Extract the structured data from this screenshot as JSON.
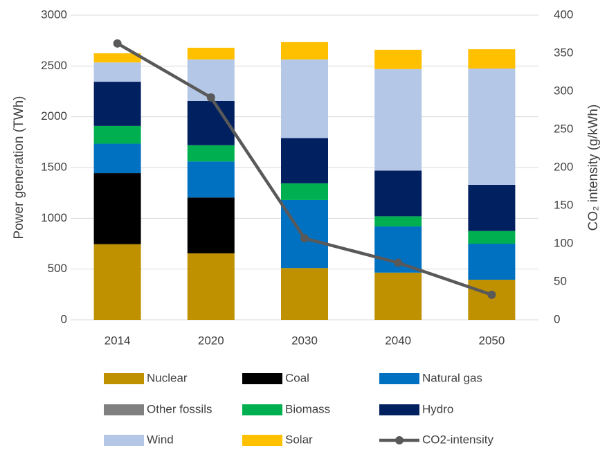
{
  "chart_data": {
    "type": "bar",
    "stacked": true,
    "y_label": "Power generation (TWh)",
    "y2_label": "CO₂ intensity (g/kWh)",
    "categories": [
      "2014",
      "2020",
      "2030",
      "2040",
      "2050"
    ],
    "ylim": [
      0,
      3000
    ],
    "yticks": [
      0,
      500,
      1000,
      1500,
      2000,
      2500,
      3000
    ],
    "y2lim": [
      0,
      400
    ],
    "y2ticks": [
      0,
      50,
      100,
      150,
      200,
      250,
      300,
      350,
      400
    ],
    "grid": true,
    "legend": "bottom",
    "series": [
      {
        "name": "Nuclear",
        "color": "#bf9000",
        "values": [
          745,
          655,
          510,
          465,
          395
        ]
      },
      {
        "name": "Coal",
        "color": "#000000",
        "values": [
          700,
          550,
          0,
          0,
          0
        ]
      },
      {
        "name": "Natural gas",
        "color": "#0070c0",
        "values": [
          290,
          355,
          670,
          455,
          355
        ]
      },
      {
        "name": "Other fossils",
        "color": "#808080",
        "values": [
          0,
          0,
          0,
          0,
          0
        ]
      },
      {
        "name": "Biomass",
        "color": "#00b050",
        "values": [
          175,
          160,
          165,
          100,
          125
        ]
      },
      {
        "name": "Hydro",
        "color": "#002060",
        "values": [
          435,
          435,
          445,
          450,
          455
        ]
      },
      {
        "name": "Wind",
        "color": "#b4c7e7",
        "values": [
          190,
          410,
          775,
          1000,
          1145
        ]
      },
      {
        "name": "Solar",
        "color": "#ffc000",
        "values": [
          90,
          115,
          170,
          190,
          190
        ]
      },
      {
        "name": "CO2-intensity",
        "color": "#595959",
        "type": "line",
        "axis": "y2",
        "values": [
          363,
          292,
          107,
          75,
          33
        ]
      }
    ]
  }
}
